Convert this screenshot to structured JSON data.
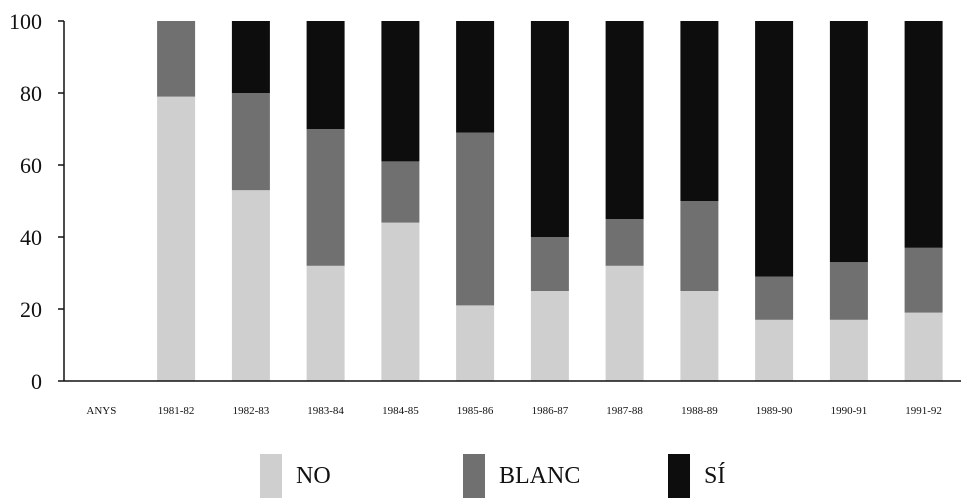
{
  "chart_data": {
    "type": "bar",
    "stacked": true,
    "categories": [
      "ANYS",
      "1981-82",
      "1982-83",
      "1983-84",
      "1984-85",
      "1985-86",
      "1986-87",
      "1987-88",
      "1988-89",
      "1989-90",
      "1990-91",
      "1991-92"
    ],
    "series": [
      {
        "name": "NO",
        "color": "#cfcfcf",
        "values": [
          null,
          79,
          53,
          32,
          44,
          21,
          25,
          32,
          25,
          17,
          17,
          19
        ]
      },
      {
        "name": "BLANC",
        "color": "#707070",
        "values": [
          null,
          21,
          27,
          38,
          17,
          48,
          15,
          13,
          25,
          12,
          16,
          18
        ]
      },
      {
        "name": "SÍ",
        "color": "#0d0d0d",
        "values": [
          null,
          0,
          20,
          30,
          39,
          31,
          60,
          55,
          50,
          71,
          67,
          63
        ]
      }
    ],
    "ylim": [
      0,
      100
    ],
    "yticks": [
      0,
      20,
      40,
      60,
      80,
      100
    ],
    "title": "",
    "xlabel": "",
    "ylabel": "",
    "legend_position": "bottom",
    "grid": false
  }
}
